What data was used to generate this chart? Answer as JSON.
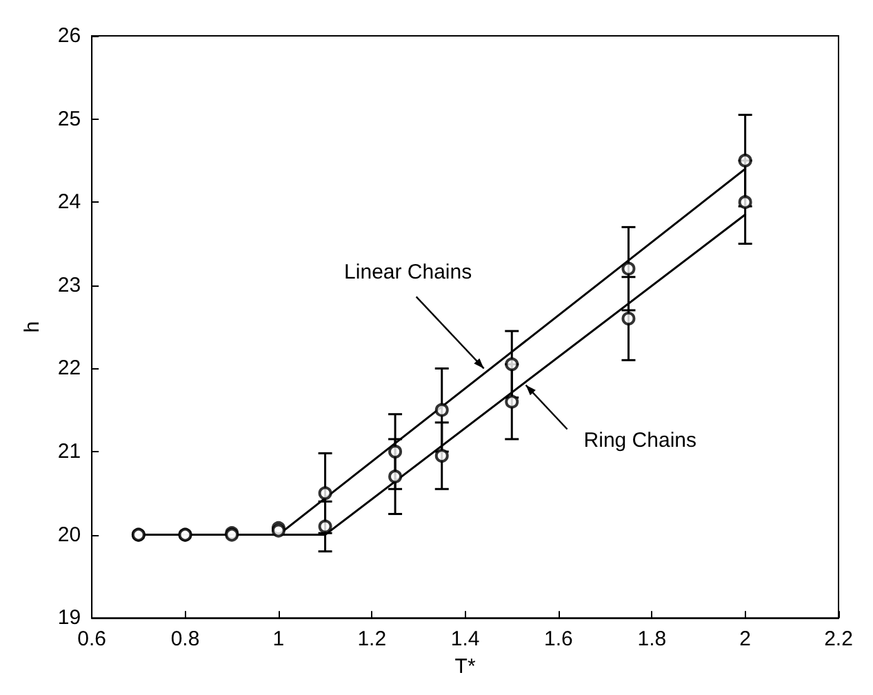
{
  "chart_data": {
    "type": "scatter",
    "xlabel": "T*",
    "ylabel": "h",
    "xlim": [
      0.6,
      2.2
    ],
    "ylim": [
      19,
      26
    ],
    "xticks": [
      0.6,
      0.8,
      1,
      1.2,
      1.4,
      1.6,
      1.8,
      2,
      2.2
    ],
    "yticks": [
      19,
      20,
      21,
      22,
      23,
      24,
      25,
      26
    ],
    "grid": false,
    "series": [
      {
        "color": "#000000",
        "marker": "circle",
        "x": [
          0.7,
          0.8,
          0.9,
          1.0,
          1.1,
          1.25,
          1.35,
          1.5,
          1.75,
          2.0
        ],
        "values": [
          20,
          20,
          20.02,
          20.08,
          20.5,
          21.0,
          21.5,
          22.05,
          23.2,
          24.5
        ],
        "errors": [
          null,
          null,
          null,
          null,
          0.48,
          0.45,
          0.5,
          0.4,
          0.5,
          0.55
        ]
      },
      {
        "color": "#000000",
        "marker": "circle",
        "x": [
          0.7,
          0.8,
          0.9,
          1.0,
          1.1,
          1.25,
          1.35,
          1.5,
          1.75,
          2.0
        ],
        "values": [
          20,
          20,
          20,
          20.05,
          20.1,
          20.7,
          20.95,
          21.6,
          22.6,
          24.0
        ],
        "errors": [
          null,
          null,
          null,
          null,
          0.3,
          0.45,
          0.4,
          0.45,
          0.5,
          0.5
        ]
      },
      {
        "type": "line",
        "color": "#000000",
        "marker": "none",
        "line_style": "solid",
        "x": [
          0.7,
          1.0,
          2.0
        ],
        "values": [
          20,
          20,
          24.4
        ]
      },
      {
        "type": "line",
        "color": "#000000",
        "marker": "none",
        "line_style": "solid",
        "x": [
          0.7,
          1.1,
          2.0
        ],
        "values": [
          20,
          20,
          23.85
        ]
      }
    ],
    "annotations": [
      {
        "text": "Linear Chains",
        "x": 1.44,
        "y": 22.0
      },
      {
        "text": "Ring Chains",
        "x": 1.53,
        "y": 21.8
      }
    ]
  }
}
